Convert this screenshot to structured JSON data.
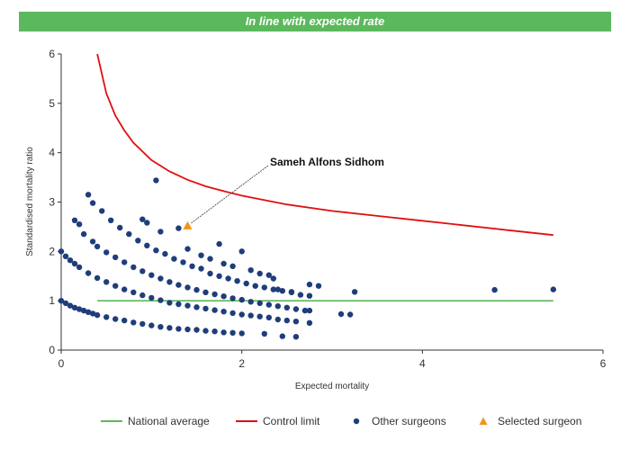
{
  "banner": {
    "title": "In line with expected rate",
    "color": "#5cb85c"
  },
  "chart_data": {
    "type": "scatter",
    "title": "",
    "xlabel": "Expected mortality",
    "ylabel": "Standardised mortality ratio",
    "xlim": [
      0,
      6
    ],
    "ylim": [
      0,
      6
    ],
    "xticks": [
      "0",
      "2",
      "4",
      "6"
    ],
    "yticks": [
      "0",
      "1",
      "2",
      "3",
      "4",
      "5",
      "6"
    ],
    "grid": false,
    "legend_position": "bottom",
    "national_average": {
      "name": "National average",
      "color": "#5cb85c",
      "y": 1,
      "x_range": [
        0.4,
        5.45
      ]
    },
    "control_limit": {
      "name": "Control limit",
      "color": "#e01010",
      "points": [
        [
          0.4,
          6.0
        ],
        [
          0.5,
          5.2
        ],
        [
          0.6,
          4.75
        ],
        [
          0.7,
          4.45
        ],
        [
          0.8,
          4.2
        ],
        [
          1.0,
          3.85
        ],
        [
          1.2,
          3.62
        ],
        [
          1.4,
          3.45
        ],
        [
          1.6,
          3.32
        ],
        [
          1.8,
          3.22
        ],
        [
          2.0,
          3.13
        ],
        [
          2.5,
          2.95
        ],
        [
          3.0,
          2.82
        ],
        [
          3.5,
          2.72
        ],
        [
          4.0,
          2.62
        ],
        [
          4.5,
          2.52
        ],
        [
          5.0,
          2.42
        ],
        [
          5.45,
          2.33
        ]
      ]
    },
    "other_surgeons": {
      "name": "Other surgeons",
      "color": "#1f3d7a",
      "points": [
        [
          0.0,
          1.0
        ],
        [
          0.05,
          0.95
        ],
        [
          0.1,
          0.9
        ],
        [
          0.15,
          0.86
        ],
        [
          0.2,
          0.83
        ],
        [
          0.25,
          0.8
        ],
        [
          0.3,
          0.77
        ],
        [
          0.35,
          0.74
        ],
        [
          0.4,
          0.71
        ],
        [
          0.5,
          0.67
        ],
        [
          0.6,
          0.63
        ],
        [
          0.7,
          0.6
        ],
        [
          0.8,
          0.56
        ],
        [
          0.9,
          0.53
        ],
        [
          1.0,
          0.5
        ],
        [
          1.1,
          0.47
        ],
        [
          1.2,
          0.45
        ],
        [
          1.3,
          0.43
        ],
        [
          1.4,
          0.42
        ],
        [
          1.5,
          0.41
        ],
        [
          1.6,
          0.39
        ],
        [
          1.7,
          0.38
        ],
        [
          1.8,
          0.36
        ],
        [
          1.9,
          0.35
        ],
        [
          2.0,
          0.34
        ],
        [
          2.25,
          0.33
        ],
        [
          2.45,
          0.28
        ],
        [
          2.6,
          0.27
        ],
        [
          0.0,
          2.0
        ],
        [
          0.05,
          1.9
        ],
        [
          0.1,
          1.82
        ],
        [
          0.15,
          1.75
        ],
        [
          0.2,
          1.68
        ],
        [
          0.3,
          1.56
        ],
        [
          0.4,
          1.46
        ],
        [
          0.5,
          1.38
        ],
        [
          0.6,
          1.3
        ],
        [
          0.7,
          1.23
        ],
        [
          0.8,
          1.17
        ],
        [
          0.9,
          1.11
        ],
        [
          1.0,
          1.06
        ],
        [
          1.1,
          1.01
        ],
        [
          1.2,
          0.96
        ],
        [
          1.3,
          0.93
        ],
        [
          1.4,
          0.9
        ],
        [
          1.5,
          0.87
        ],
        [
          1.6,
          0.84
        ],
        [
          1.7,
          0.81
        ],
        [
          1.8,
          0.78
        ],
        [
          1.9,
          0.75
        ],
        [
          2.0,
          0.72
        ],
        [
          2.1,
          0.7
        ],
        [
          2.2,
          0.68
        ],
        [
          2.3,
          0.66
        ],
        [
          2.4,
          0.62
        ],
        [
          2.5,
          0.6
        ],
        [
          2.6,
          0.58
        ],
        [
          2.75,
          0.55
        ],
        [
          0.15,
          2.63
        ],
        [
          0.2,
          2.55
        ],
        [
          0.25,
          2.35
        ],
        [
          0.35,
          2.2
        ],
        [
          0.4,
          2.1
        ],
        [
          0.5,
          1.98
        ],
        [
          0.6,
          1.88
        ],
        [
          0.7,
          1.78
        ],
        [
          0.8,
          1.68
        ],
        [
          0.9,
          1.6
        ],
        [
          1.0,
          1.52
        ],
        [
          1.1,
          1.45
        ],
        [
          1.2,
          1.38
        ],
        [
          1.3,
          1.32
        ],
        [
          1.4,
          1.27
        ],
        [
          1.5,
          1.22
        ],
        [
          1.6,
          1.17
        ],
        [
          1.7,
          1.13
        ],
        [
          1.8,
          1.09
        ],
        [
          1.9,
          1.05
        ],
        [
          2.0,
          1.02
        ],
        [
          2.1,
          0.98
        ],
        [
          2.2,
          0.95
        ],
        [
          2.3,
          0.92
        ],
        [
          2.4,
          0.89
        ],
        [
          2.5,
          0.86
        ],
        [
          2.6,
          0.83
        ],
        [
          2.7,
          0.8
        ],
        [
          2.75,
          0.8
        ],
        [
          3.1,
          0.73
        ],
        [
          3.2,
          0.72
        ],
        [
          0.3,
          3.15
        ],
        [
          0.35,
          2.98
        ],
        [
          0.45,
          2.82
        ],
        [
          0.55,
          2.63
        ],
        [
          0.65,
          2.48
        ],
        [
          0.75,
          2.35
        ],
        [
          0.85,
          2.22
        ],
        [
          0.95,
          2.12
        ],
        [
          1.05,
          2.02
        ],
        [
          1.15,
          1.95
        ],
        [
          1.25,
          1.85
        ],
        [
          1.35,
          1.78
        ],
        [
          1.45,
          1.7
        ],
        [
          1.55,
          1.65
        ],
        [
          1.65,
          1.55
        ],
        [
          1.75,
          1.5
        ],
        [
          1.85,
          1.45
        ],
        [
          1.95,
          1.4
        ],
        [
          2.05,
          1.35
        ],
        [
          2.15,
          1.3
        ],
        [
          2.25,
          1.27
        ],
        [
          2.35,
          1.23
        ],
        [
          2.45,
          1.2
        ],
        [
          2.55,
          1.18
        ],
        [
          2.65,
          1.12
        ],
        [
          2.75,
          1.1
        ],
        [
          0.9,
          2.65
        ],
        [
          0.95,
          2.58
        ],
        [
          1.1,
          2.4
        ],
        [
          1.3,
          2.47
        ],
        [
          1.4,
          2.05
        ],
        [
          1.55,
          1.92
        ],
        [
          1.65,
          1.85
        ],
        [
          1.75,
          2.15
        ],
        [
          1.8,
          1.75
        ],
        [
          1.9,
          1.7
        ],
        [
          2.0,
          2.0
        ],
        [
          2.1,
          1.62
        ],
        [
          2.2,
          1.55
        ],
        [
          2.3,
          1.52
        ],
        [
          2.35,
          1.45
        ],
        [
          2.4,
          1.23
        ],
        [
          2.55,
          1.17
        ],
        [
          2.75,
          1.33
        ],
        [
          2.85,
          1.3
        ],
        [
          3.25,
          1.18
        ],
        [
          1.05,
          3.44
        ],
        [
          4.8,
          1.22
        ],
        [
          5.45,
          1.23
        ]
      ]
    },
    "selected_surgeon": {
      "name": "Selected surgeon",
      "label": "Sameh Alfons Sidhom",
      "color": "#f29418",
      "x": 1.4,
      "y": 2.5
    }
  }
}
